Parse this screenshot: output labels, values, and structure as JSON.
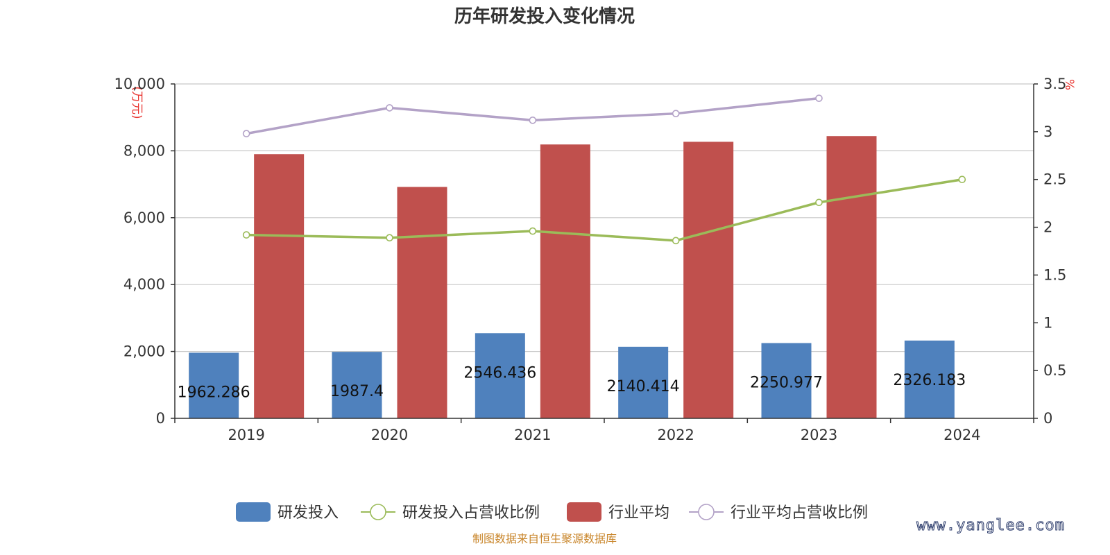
{
  "chart_data": {
    "type": "bar",
    "title": "历年研发投入变化情况",
    "categories": [
      "2019",
      "2020",
      "2021",
      "2022",
      "2023",
      "2024"
    ],
    "y_left": {
      "unit_label": "(万元)",
      "min": 0,
      "max": 10000,
      "ticks": [
        "0",
        "2,000",
        "4,000",
        "6,000",
        "8,000",
        "10,000"
      ]
    },
    "y_right": {
      "unit_label": "%",
      "min": 0,
      "max": 3.5,
      "ticks": [
        "0",
        "0.5",
        "1",
        "1.5",
        "2",
        "2.5",
        "3",
        "3.5"
      ]
    },
    "grid": true,
    "legend_position": "bottom",
    "series": [
      {
        "name": "研发投入",
        "type": "bar",
        "axis": "left",
        "color": "#4f81bd",
        "values": [
          1962.286,
          1987.4,
          2546.436,
          2140.414,
          2250.977,
          2326.183
        ],
        "labels": [
          "1962.286",
          "1987.4",
          "2546.436",
          "2140.414",
          "2250.977",
          "2326.183"
        ]
      },
      {
        "name": "研发投入占营收比例",
        "type": "line",
        "axis": "right",
        "color": "#9bbb59",
        "values": [
          1.92,
          1.89,
          1.96,
          1.86,
          2.26,
          2.5
        ]
      },
      {
        "name": "行业平均",
        "type": "bar",
        "axis": "left",
        "color": "#c0504d",
        "values": [
          7900,
          6920,
          8190,
          8270,
          8440,
          null
        ]
      },
      {
        "name": "行业平均占营收比例",
        "type": "line",
        "axis": "right",
        "color": "#b3a2c7",
        "values": [
          2.98,
          3.25,
          3.12,
          3.19,
          3.35,
          null
        ]
      }
    ]
  },
  "footer": {
    "source": "制图数据来自恒生聚源数据库",
    "watermark": "www.yanglee.com"
  }
}
